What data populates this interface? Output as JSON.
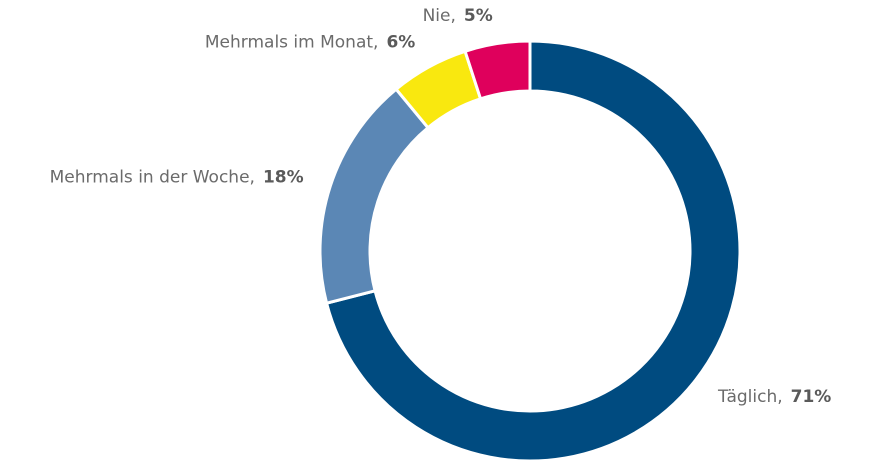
{
  "chart_data": {
    "type": "donut",
    "categories": [
      "Täglich,",
      "Mehrmals in der Woche,",
      "Mehrmals im Monat,",
      "Nie,"
    ],
    "values": [
      71,
      18,
      6,
      5
    ],
    "value_labels": [
      "71%",
      "18%",
      "6%",
      "5%"
    ],
    "colors": [
      "#004b80",
      "#5b87b5",
      "#f9e80f",
      "#df005c"
    ]
  }
}
